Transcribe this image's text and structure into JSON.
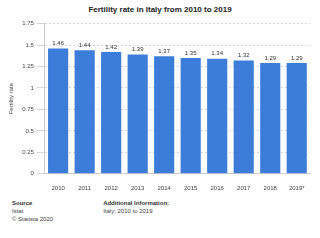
{
  "chart_data": {
    "type": "bar",
    "title": "Fertility rate in Italy from 2010 to 2019",
    "y_label": "Fertility rate",
    "categories": [
      "2010",
      "2011",
      "2012",
      "2013",
      "2014",
      "2015",
      "2016",
      "2017",
      "2018",
      "2019*"
    ],
    "values": [
      1.46,
      1.44,
      1.42,
      1.39,
      1.37,
      1.35,
      1.34,
      1.32,
      1.29,
      1.29
    ],
    "color": "#3b7dd8",
    "ylim": [
      0,
      1.75
    ],
    "yticks": [
      0,
      0.25,
      0.5,
      0.75,
      1,
      1.25,
      1.5,
      1.75
    ],
    "grid": true,
    "data_labels": true,
    "footer": {
      "source_heading": "Source",
      "source": "Istat",
      "copyright": "© Statista 2020",
      "info_heading": "Additional Information:",
      "info": "Italy; 2010 to 2019"
    }
  }
}
